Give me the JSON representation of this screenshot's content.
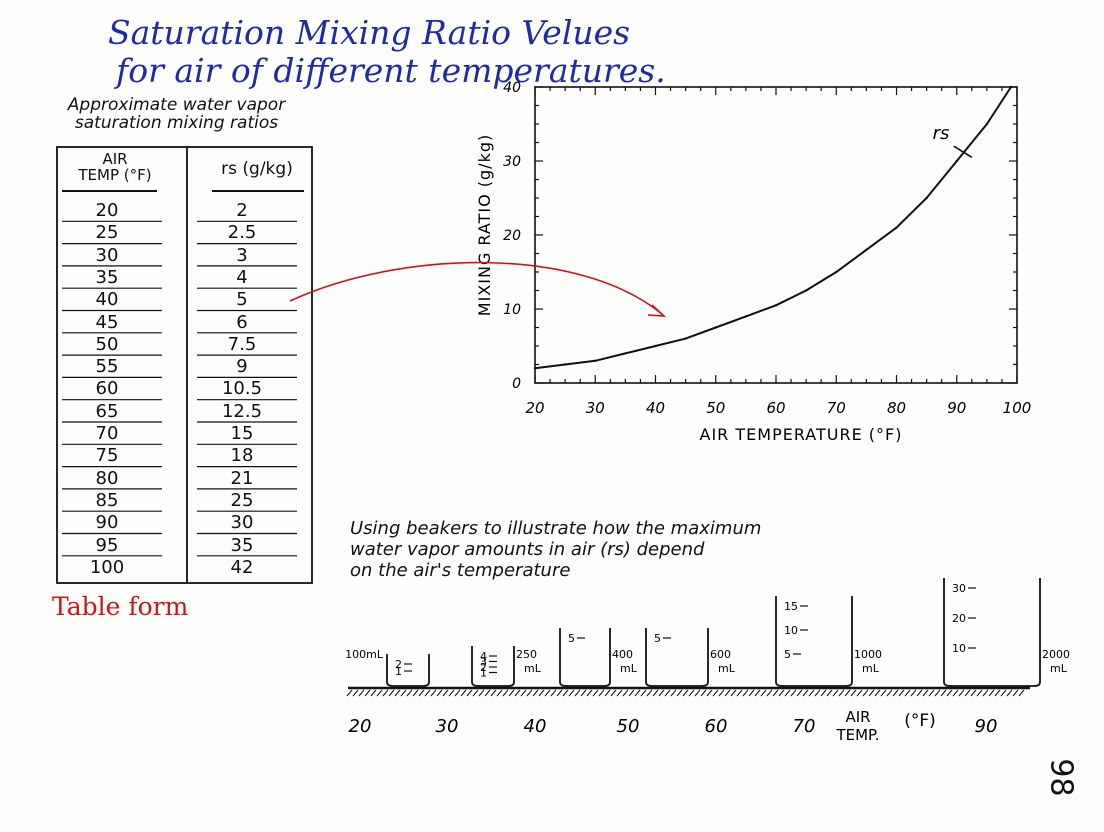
{
  "title": {
    "line1": "Saturation Mixing Ratio Velues",
    "line2": "for air of different temperatures."
  },
  "table": {
    "caption_line1": "Approximate water vapor",
    "caption_line2": "saturation mixing ratios",
    "col1_header_line1": "AIR",
    "col1_header_line2": "TEMP (°F)",
    "col2_header": "rs (g/kg)",
    "rows": [
      [
        "20",
        "2"
      ],
      [
        "25",
        "2.5"
      ],
      [
        "30",
        "3"
      ],
      [
        "35",
        "4"
      ],
      [
        "40",
        "5"
      ],
      [
        "45",
        "6"
      ],
      [
        "50",
        "7.5"
      ],
      [
        "55",
        "9"
      ],
      [
        "60",
        "10.5"
      ],
      [
        "65",
        "12.5"
      ],
      [
        "70",
        "15"
      ],
      [
        "75",
        "18"
      ],
      [
        "80",
        "21"
      ],
      [
        "85",
        "25"
      ],
      [
        "90",
        "30"
      ],
      [
        "95",
        "35"
      ],
      [
        "100",
        "42"
      ]
    ],
    "label": "Table form",
    "label_color": "#d0121a"
  },
  "chart_data": {
    "type": "line",
    "xlabel": "AIR TEMPERATURE (°F)",
    "ylabel": "MIXING RATIO (g/kg)",
    "xlim": [
      20,
      100
    ],
    "ylim": [
      0,
      40
    ],
    "xticks": [
      "20",
      "30",
      "40",
      "50",
      "60",
      "70",
      "80",
      "90",
      "100"
    ],
    "yticks": [
      "0",
      "10",
      "20",
      "30",
      "40"
    ],
    "series": [
      {
        "name": "rs",
        "x": [
          20,
          25,
          30,
          35,
          40,
          45,
          50,
          55,
          60,
          65,
          70,
          75,
          80,
          85,
          90,
          95,
          99
        ],
        "values": [
          2,
          2.5,
          3,
          4,
          5,
          6,
          7.5,
          9,
          10.5,
          12.5,
          15,
          18,
          21,
          25,
          30,
          35,
          40
        ]
      }
    ],
    "curve_label": "rs",
    "arrow_color": "#d0121a"
  },
  "beakers": {
    "caption_line1": "Using beakers to illustrate how the maximum",
    "caption_line2": "water vapor amounts in air (rs) depend",
    "caption_line3": "on the air's temperature",
    "items": [
      {
        "left_label": "100mL",
        "right_label": "",
        "marks": [
          "2",
          "1"
        ]
      },
      {
        "left_label": "",
        "right_label": "250 mL",
        "marks": [
          "4",
          "3",
          "2",
          "1"
        ]
      },
      {
        "left_label": "",
        "right_label": "400 mL",
        "marks": [
          "5"
        ]
      },
      {
        "left_label": "",
        "right_label": "600 mL",
        "marks": [
          "5"
        ]
      },
      {
        "left_label": "",
        "right_label": "1000 mL",
        "marks": [
          "15",
          "10",
          "5"
        ]
      },
      {
        "left_label": "",
        "right_label": "2000 mL",
        "marks": [
          "30",
          "20",
          "10"
        ]
      }
    ],
    "axis_labels": [
      "20",
      "30",
      "40",
      "50",
      "60",
      "70",
      "90"
    ],
    "axis_title_line1": "AIR",
    "axis_title_line2": "TEMP.",
    "axis_unit": "(°F)"
  },
  "page_number": "98"
}
